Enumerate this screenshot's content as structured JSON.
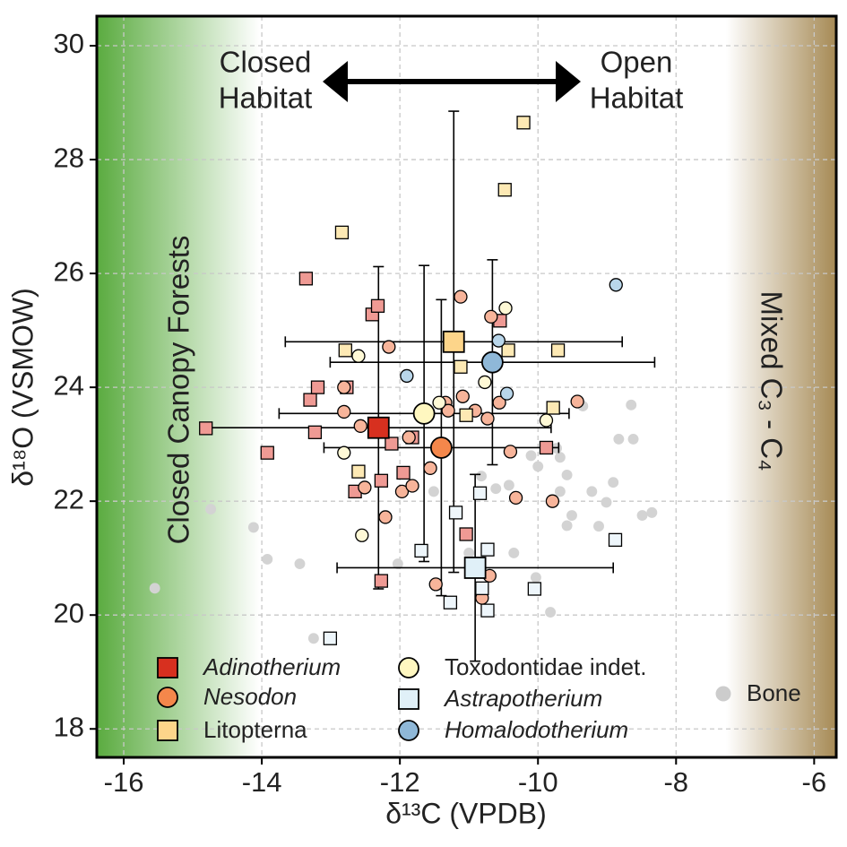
{
  "chart_data": {
    "type": "scatter",
    "x_label": "δ¹³C (VPDB)",
    "y_label": "δ¹⁸O (VSMOW)",
    "annotations": {
      "closed_habitat": [
        "Closed",
        "Habitat"
      ],
      "open_habitat": [
        "Open",
        "Habitat"
      ],
      "left_band": "Closed Canopy Forests",
      "right_band": "Mixed C₃ - C₄"
    },
    "xlim": [
      -16.39,
      -5.68
    ],
    "ylim": [
      17.5,
      30.52
    ],
    "xticks": [
      -16,
      -14,
      -12,
      -10,
      -8,
      -6
    ],
    "yticks": [
      18,
      20,
      22,
      24,
      26,
      28,
      30
    ],
    "grid": true,
    "series": [
      {
        "name": "Adinotherium",
        "italic": true,
        "marker": "square",
        "color": "#d7301f",
        "point_color": "#ef9a94",
        "x": [
          -14.81,
          -13.92,
          -13.36,
          -13.3,
          -13.23,
          -13.19,
          -12.77,
          -12.4,
          -12.32,
          -12.65,
          -12.27,
          -12.12,
          -11.95,
          -11.82,
          -11.04,
          -10.55,
          -9.88,
          -12.27
        ],
        "values": [
          23.28,
          22.85,
          25.91,
          23.78,
          23.21,
          24.0,
          24.0,
          25.28,
          25.43,
          22.17,
          22.36,
          23.01,
          22.5,
          23.12,
          21.42,
          25.17,
          22.94,
          20.6
        ],
        "mean": {
          "x": -12.31,
          "y": 23.29,
          "x_error": 2.5,
          "y_error": 2.83
        }
      },
      {
        "name": "Nesodon",
        "italic": true,
        "marker": "circle",
        "color": "#f4874b",
        "point_color": "#f7b49a",
        "x": [
          -12.81,
          -12.81,
          -12.57,
          -12.16,
          -12.51,
          -11.97,
          -11.82,
          -12.21,
          -11.56,
          -11.87,
          -11.34,
          -11.3,
          -11.12,
          -11.09,
          -10.91,
          -10.68,
          -10.56,
          -10.73,
          -10.4,
          -10.32,
          -9.79,
          -9.43,
          -11.48,
          -10.7,
          -10.81
        ],
        "values": [
          23.57,
          24.0,
          23.32,
          24.71,
          22.24,
          22.17,
          22.27,
          21.72,
          22.58,
          23.12,
          23.73,
          23.59,
          25.59,
          23.84,
          23.59,
          25.24,
          23.73,
          23.45,
          22.87,
          22.06,
          22.0,
          23.75,
          20.54,
          20.69,
          20.3
        ],
        "mean": {
          "x": -11.4,
          "y": 22.94,
          "x_error": 1.7,
          "y_error": 2.6
        }
      },
      {
        "name": "Litopterna",
        "italic": false,
        "marker": "square",
        "color": "#fdd58a",
        "point_color": "#fde9b4",
        "x": [
          -10.21,
          -10.48,
          -12.84,
          -12.79,
          -12.6,
          -11.12,
          -11.04,
          -10.43,
          -9.71,
          -9.78
        ],
        "values": [
          28.65,
          27.47,
          26.72,
          24.65,
          22.52,
          24.36,
          23.51,
          24.65,
          24.65,
          23.64
        ],
        "mean": {
          "x": -11.22,
          "y": 24.8,
          "x_error": 2.44,
          "y_error": 4.05
        }
      },
      {
        "name": "Toxodontidae indet.",
        "italic": false,
        "marker": "circle",
        "color": "#fff7c0",
        "point_color": "#fff9d6",
        "x": [
          -12.6,
          -12.81,
          -12.55,
          -10.47,
          -10.77,
          -11.43,
          -9.88
        ],
        "values": [
          24.55,
          22.85,
          21.4,
          25.39,
          24.09,
          23.73,
          23.42
        ],
        "mean": {
          "x": -11.65,
          "y": 23.54,
          "x_error": 2.1,
          "y_error": 2.6
        }
      },
      {
        "name": "Astrapotherium",
        "italic": true,
        "marker": "square",
        "color": "#e0f0f8",
        "point_color": "#eef6fb",
        "x": [
          -13.01,
          -11.69,
          -11.27,
          -11.19,
          -10.84,
          -10.73,
          -10.81,
          -10.73,
          -10.05,
          -8.88
        ],
        "values": [
          19.59,
          21.13,
          20.22,
          21.8,
          22.14,
          21.15,
          20.47,
          20.08,
          20.46,
          21.32
        ],
        "mean": {
          "x": -10.91,
          "y": 20.83,
          "x_error": 2.0,
          "y_error": 1.64
        }
      },
      {
        "name": "Homalodotherium",
        "italic": true,
        "marker": "circle",
        "color": "#8fb8d8",
        "point_color": "#b9d6ea",
        "x": [
          -11.9,
          -10.57,
          -10.45,
          -8.87
        ],
        "values": [
          24.2,
          24.82,
          23.89,
          25.8
        ],
        "mean": {
          "x": -10.66,
          "y": 24.44,
          "x_error": 2.35,
          "y_error": 1.8
        }
      },
      {
        "name": "Bone",
        "italic": false,
        "marker": "dot",
        "color": "#cccccc",
        "point_color": "#d3d3d3",
        "x": [
          -15.55,
          -14.74,
          -14.12,
          -13.92,
          -13.45,
          -13.25,
          -12.03,
          -11.51,
          -11.0,
          -10.82,
          -10.61,
          -10.42,
          -10.1,
          -10.0,
          -9.73,
          -9.68,
          -9.68,
          -9.58,
          -9.58,
          -9.51,
          -9.35,
          -9.22,
          -9.12,
          -8.91,
          -8.83,
          -8.65,
          -8.62,
          -9.01,
          -8.49,
          -8.35,
          -9.82,
          -10.03,
          -10.35
        ],
        "values": [
          20.47,
          21.86,
          21.54,
          20.98,
          20.9,
          19.59,
          20.9,
          22.17,
          21.09,
          22.44,
          22.22,
          22.28,
          22.8,
          22.61,
          22.93,
          22.77,
          22.17,
          21.57,
          22.46,
          21.75,
          23.67,
          22.17,
          21.56,
          22.33,
          23.09,
          23.69,
          23.09,
          21.98,
          21.75,
          21.8,
          20.05,
          20.66,
          21.09
        ]
      }
    ]
  }
}
